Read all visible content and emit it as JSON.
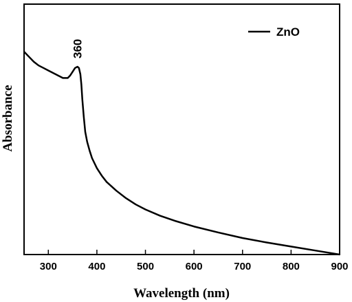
{
  "chart_data": {
    "type": "line",
    "title": "",
    "xlabel": "Wavelength (nm)",
    "ylabel": "Absorbance",
    "xlim": [
      250,
      900
    ],
    "ylim": [
      0,
      1.0
    ],
    "x_ticks": [
      300,
      400,
      500,
      600,
      700,
      800,
      900
    ],
    "y_ticks_shown": false,
    "grid": false,
    "legend_position": "top-right",
    "series": [
      {
        "name": "ZnO",
        "color": "#000000",
        "x": [
          250,
          260,
          270,
          280,
          290,
          300,
          310,
          320,
          330,
          340,
          345,
          350,
          355,
          360,
          363,
          366,
          368,
          370,
          373,
          376,
          380,
          385,
          390,
          400,
          410,
          420,
          440,
          460,
          480,
          500,
          530,
          560,
          600,
          650,
          700,
          750,
          800,
          850,
          900
        ],
        "y": [
          0.81,
          0.79,
          0.77,
          0.755,
          0.745,
          0.735,
          0.725,
          0.715,
          0.705,
          0.705,
          0.715,
          0.73,
          0.745,
          0.75,
          0.745,
          0.72,
          0.68,
          0.62,
          0.55,
          0.49,
          0.45,
          0.415,
          0.385,
          0.345,
          0.315,
          0.29,
          0.255,
          0.225,
          0.2,
          0.18,
          0.155,
          0.135,
          0.112,
          0.088,
          0.066,
          0.048,
          0.032,
          0.016,
          0.0
        ]
      }
    ],
    "annotations": [
      {
        "text": "360",
        "x": 360,
        "y": 0.75
      }
    ]
  }
}
